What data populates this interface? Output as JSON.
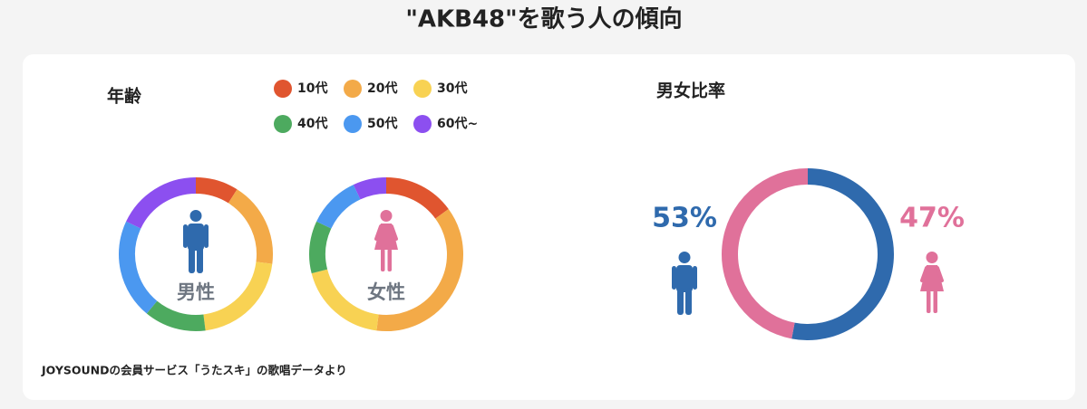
{
  "header": {
    "title": "\"AKB48\"を歌う人の傾向"
  },
  "chart_data": [
    {
      "type": "donut",
      "title": "年齢",
      "categories": [
        "10代",
        "20代",
        "30代",
        "40代",
        "50代",
        "60代~"
      ],
      "colors": [
        "#e0552f",
        "#f3aa48",
        "#f8d253",
        "#4daa5f",
        "#4b98f0",
        "#8c4ff0"
      ],
      "series": [
        {
          "name": "男性",
          "color": "#2f6aad",
          "values": [
            9,
            18,
            21,
            13,
            21,
            18
          ]
        },
        {
          "name": "女性",
          "color": "#e0719a",
          "values": [
            15,
            37,
            19,
            11,
            11,
            7
          ]
        }
      ]
    },
    {
      "type": "donut",
      "title": "男女比率",
      "values": [
        53,
        47
      ],
      "value_labels": [
        "53%",
        "47%"
      ],
      "colors": [
        "#2f6aad",
        "#e0719a"
      ]
    }
  ],
  "footnote": "JOYSOUNDの会員サービス「うたスキ」の歌唱データより"
}
